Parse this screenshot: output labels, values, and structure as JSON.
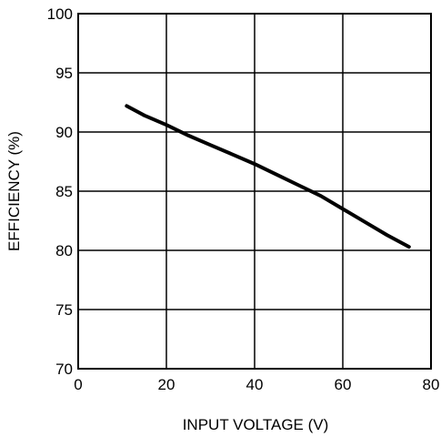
{
  "chart_data": {
    "type": "line",
    "title": "",
    "xlabel": "INPUT VOLTAGE (V)",
    "ylabel": "EFFICIENCY (%)",
    "xlim": [
      0,
      80
    ],
    "ylim": [
      70,
      100
    ],
    "xticks": [
      0,
      20,
      40,
      60,
      80
    ],
    "yticks": [
      70,
      75,
      80,
      85,
      90,
      95,
      100
    ],
    "xtick_labels": [
      "0",
      "20",
      "40",
      "60",
      "80"
    ],
    "ytick_labels": [
      "70",
      "75",
      "80",
      "85",
      "90",
      "95",
      "100"
    ],
    "grid": true,
    "series": [
      {
        "color": "#000000",
        "x": [
          11,
          15,
          20,
          25,
          30,
          35,
          40,
          45,
          50,
          55,
          60,
          65,
          70,
          75
        ],
        "y": [
          92.2,
          91.4,
          90.6,
          89.7,
          88.9,
          88.1,
          87.3,
          86.4,
          85.5,
          84.6,
          83.5,
          82.4,
          81.3,
          80.3
        ]
      }
    ]
  }
}
